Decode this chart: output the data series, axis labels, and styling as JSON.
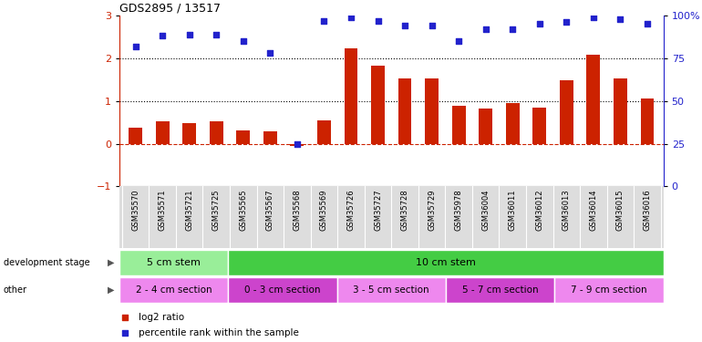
{
  "title": "GDS2895 / 13517",
  "samples": [
    "GSM35570",
    "GSM35571",
    "GSM35721",
    "GSM35725",
    "GSM35565",
    "GSM35567",
    "GSM35568",
    "GSM35569",
    "GSM35726",
    "GSM35727",
    "GSM35728",
    "GSM35729",
    "GSM35978",
    "GSM36004",
    "GSM36011",
    "GSM36012",
    "GSM36013",
    "GSM36014",
    "GSM36015",
    "GSM36016"
  ],
  "log2_ratio": [
    0.38,
    0.52,
    0.48,
    0.52,
    0.3,
    0.28,
    -0.05,
    0.55,
    2.22,
    1.83,
    1.52,
    1.52,
    0.88,
    0.82,
    0.95,
    0.85,
    1.48,
    2.07,
    1.52,
    1.05
  ],
  "percentile": [
    82,
    88,
    89,
    89,
    85,
    78,
    25,
    97,
    99,
    97,
    94,
    94,
    85,
    92,
    92,
    95,
    96,
    99,
    98,
    95
  ],
  "bar_color": "#cc2200",
  "dot_color": "#2222cc",
  "ylim_left": [
    -1,
    3
  ],
  "ylim_right": [
    0,
    100
  ],
  "yticks_left": [
    -1,
    0,
    1,
    2,
    3
  ],
  "yticks_right": [
    0,
    25,
    50,
    75,
    100
  ],
  "hlines": [
    1.0,
    2.0
  ],
  "dev_stage_groups": [
    {
      "label": "5 cm stem",
      "start": 0,
      "end": 4,
      "color": "#99ee99"
    },
    {
      "label": "10 cm stem",
      "start": 4,
      "end": 20,
      "color": "#44cc44"
    }
  ],
  "other_groups": [
    {
      "label": "2 - 4 cm section",
      "start": 0,
      "end": 4,
      "color": "#ee88ee"
    },
    {
      "label": "0 - 3 cm section",
      "start": 4,
      "end": 8,
      "color": "#cc44cc"
    },
    {
      "label": "3 - 5 cm section",
      "start": 8,
      "end": 12,
      "color": "#ee88ee"
    },
    {
      "label": "5 - 7 cm section",
      "start": 12,
      "end": 16,
      "color": "#cc44cc"
    },
    {
      "label": "7 - 9 cm section",
      "start": 16,
      "end": 20,
      "color": "#ee88ee"
    }
  ],
  "background_color": "#ffffff"
}
